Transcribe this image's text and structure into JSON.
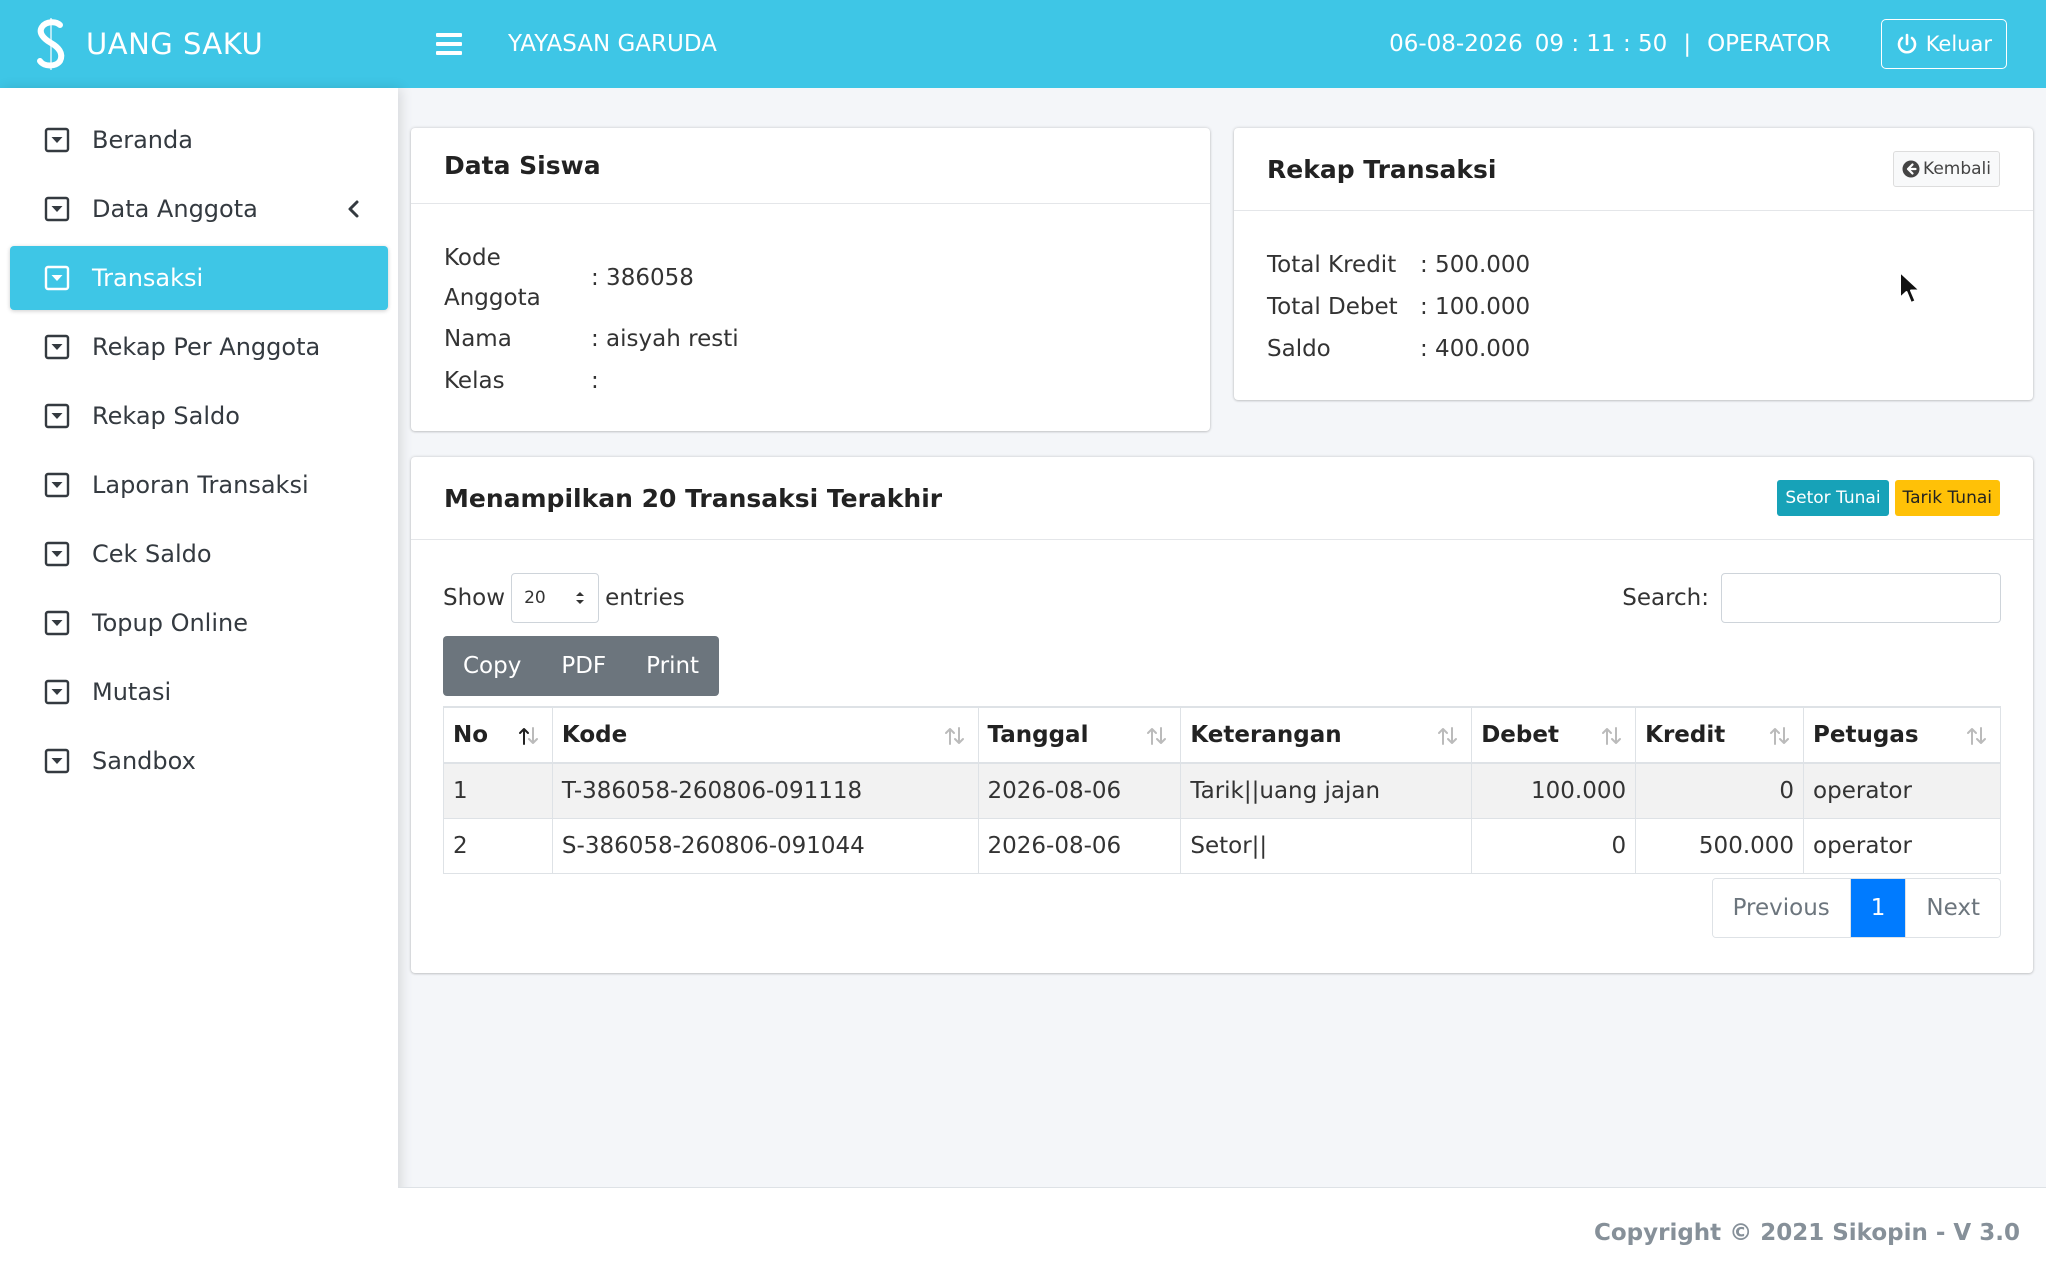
{
  "header": {
    "brand": "UANG SAKU",
    "org": "YAYASAN GARUDA",
    "date": "06-08-2026",
    "time": "09 : 11 : 50",
    "separator": "|",
    "role": "OPERATOR",
    "logout_label": "Keluar"
  },
  "sidebar": {
    "items": [
      {
        "label": "Beranda"
      },
      {
        "label": "Data Anggota"
      },
      {
        "label": "Transaksi"
      },
      {
        "label": "Rekap Per Anggota"
      },
      {
        "label": "Rekap Saldo"
      },
      {
        "label": "Laporan Transaksi"
      },
      {
        "label": "Cek Saldo"
      },
      {
        "label": "Topup Online"
      },
      {
        "label": "Mutasi"
      },
      {
        "label": "Sandbox"
      }
    ],
    "active_index": 2
  },
  "data_siswa": {
    "title": "Data Siswa",
    "kode_label_1": "Kode",
    "kode_label_2": "Anggota",
    "kode_value": ": 386058",
    "nama_label": "Nama",
    "nama_value": ": aisyah resti",
    "kelas_label": "Kelas",
    "kelas_value": ":"
  },
  "rekap": {
    "title": "Rekap Transaksi",
    "back_label": "Kembali",
    "total_kredit_label": "Total Kredit",
    "total_kredit_value": ": 500.000",
    "total_debet_label": "Total Debet",
    "total_debet_value": ": 100.000",
    "saldo_label": "Saldo",
    "saldo_value": ": 400.000"
  },
  "transaksi": {
    "title": "Menampilkan 20 Transaksi Terakhir",
    "setor_label": "Setor Tunai",
    "tarik_label": "Tarik Tunai",
    "show_label": "Show",
    "entries_value": "20",
    "entries_label": "entries",
    "search_label": "Search:",
    "search_value": "",
    "buttons": {
      "copy": "Copy",
      "pdf": "PDF",
      "print": "Print"
    },
    "columns": [
      "No",
      "Kode",
      "Tanggal",
      "Keterangan",
      "Debet",
      "Kredit",
      "Petugas"
    ],
    "rows": [
      {
        "no": "1",
        "kode": "T-386058-260806-091118",
        "tanggal": "2026-08-06",
        "keterangan": "Tarik||uang jajan",
        "debet": "100.000",
        "kredit": "0",
        "petugas": "operator"
      },
      {
        "no": "2",
        "kode": "S-386058-260806-091044",
        "tanggal": "2026-08-06",
        "keterangan": "Setor||",
        "debet": "0",
        "kredit": "500.000",
        "petugas": "operator"
      }
    ],
    "pagination": {
      "previous": "Previous",
      "current": "1",
      "next": "Next"
    }
  },
  "footer": {
    "copyright": "Copyright © 2021 Sikopin",
    "version": " - V 3.0"
  },
  "colors": {
    "primary": "#3ec6e6",
    "setor": "#17a2b8",
    "tarik": "#ffc107",
    "page_active": "#007bff",
    "button_group": "#6c757d"
  }
}
